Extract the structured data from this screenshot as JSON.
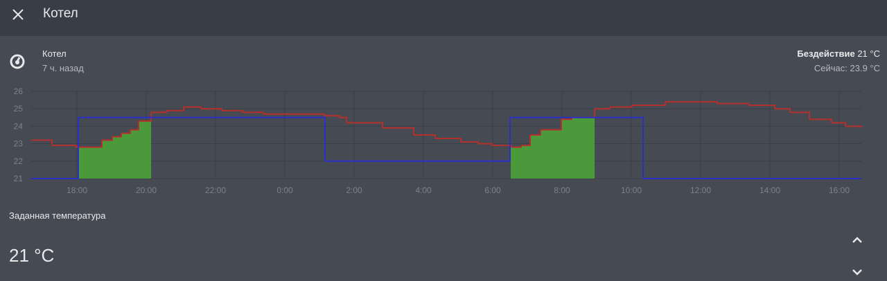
{
  "header": {
    "title": "Котел"
  },
  "entity": {
    "name": "Котел",
    "last_changed": "7 ч. назад",
    "state": "Бездействие",
    "state_value": "21 °C",
    "current": "Сейчас: 23.9 °C"
  },
  "chart_data": {
    "type": "line",
    "step": true,
    "grid": true,
    "xlim": [
      16.68,
      40.64
    ],
    "ylim": [
      21,
      26
    ],
    "yticks": [
      21,
      22,
      23,
      24,
      25,
      26
    ],
    "xticks": [
      {
        "value": 18,
        "label": "18:00"
      },
      {
        "value": 20,
        "label": "20:00"
      },
      {
        "value": 22,
        "label": "22:00"
      },
      {
        "value": 24,
        "label": "0:00"
      },
      {
        "value": 26,
        "label": "2:00"
      },
      {
        "value": 28,
        "label": "4:00"
      },
      {
        "value": 30,
        "label": "6:00"
      },
      {
        "value": 32,
        "label": "8:00"
      },
      {
        "value": 34,
        "label": "10:00"
      },
      {
        "value": 36,
        "label": "12:00"
      },
      {
        "value": 38,
        "label": "14:00"
      },
      {
        "value": 40,
        "label": "16:00"
      }
    ],
    "series": [
      {
        "color": "#b5302c",
        "x": [
          16.68,
          17.28,
          17.98,
          18.34,
          18.72,
          19.02,
          19.28,
          19.54,
          19.78,
          20.14,
          20.58,
          21.08,
          21.58,
          22.18,
          22.78,
          23.38,
          23.98,
          25.14,
          25.58,
          25.78,
          26.82,
          27.72,
          28.34,
          29.08,
          29.58,
          29.98,
          30.54,
          30.82,
          31.08,
          31.38,
          31.98,
          32.28,
          32.94,
          33.38,
          34.02,
          34.98,
          35.48,
          35.98,
          36.48,
          37.38,
          38.14,
          38.58,
          39.14,
          39.78,
          40.18,
          40.64
        ],
        "values": [
          23.2,
          22.9,
          22.8,
          22.8,
          23.2,
          23.4,
          23.6,
          23.8,
          24.3,
          24.8,
          24.9,
          25.1,
          25.0,
          24.9,
          24.8,
          24.7,
          24.7,
          24.6,
          24.5,
          24.2,
          23.9,
          23.5,
          23.3,
          23.1,
          23.0,
          22.9,
          22.8,
          22.9,
          23.5,
          23.8,
          24.4,
          24.5,
          25.0,
          25.1,
          25.2,
          25.4,
          25.4,
          25.4,
          25.3,
          25.2,
          25.0,
          24.8,
          24.4,
          24.2,
          24.0,
          23.9
        ]
      },
      {
        "color": "#2a2fc8",
        "x": [
          16.68,
          18.04,
          25.16,
          30.5,
          34.34,
          40.64
        ],
        "values": [
          21,
          24.5,
          22,
          24.5,
          21,
          21
        ]
      }
    ],
    "heating": {
      "color": "#4a9a3c",
      "periods": [
        [
          18.04,
          20.14
        ],
        [
          30.52,
          32.94
        ]
      ]
    }
  },
  "target": {
    "label": "Заданная температура",
    "value": "21 °C"
  }
}
